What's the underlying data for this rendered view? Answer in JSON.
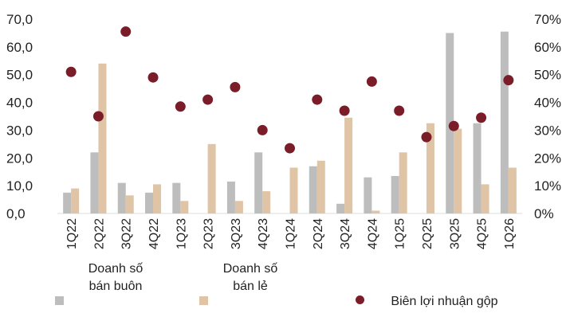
{
  "chart_data": {
    "type": "bar",
    "categories": [
      "1Q22",
      "2Q22",
      "3Q22",
      "4Q22",
      "1Q23",
      "2Q23",
      "3Q23",
      "4Q23",
      "1Q24",
      "2Q24",
      "3Q24",
      "4Q24",
      "1Q25",
      "2Q25",
      "3Q25",
      "4Q25",
      "1Q26"
    ],
    "series": [
      {
        "name": "Doanh số bán buôn",
        "kind": "bar",
        "axis": "left",
        "color": "#bdbdbd",
        "values": [
          7.5,
          22.0,
          11.0,
          7.5,
          11.0,
          0,
          11.5,
          22.0,
          0,
          17.0,
          3.5,
          13.0,
          13.5,
          0,
          65.0,
          32.5,
          65.5
        ]
      },
      {
        "name": "Doanh số bán lẻ",
        "kind": "bar",
        "axis": "left",
        "color": "#dfc4a6",
        "values": [
          9.0,
          54.0,
          6.5,
          10.5,
          4.5,
          25.0,
          4.5,
          8.0,
          16.5,
          19.0,
          34.5,
          1.0,
          22.0,
          32.5,
          30.5,
          10.5,
          16.5
        ]
      },
      {
        "name": "Biên lợi nhuận gộp",
        "kind": "scatter",
        "axis": "right",
        "color": "#7b1d28",
        "values": [
          51,
          35,
          65.5,
          49,
          38.5,
          41,
          45.5,
          30,
          23.5,
          41,
          37,
          47.5,
          37,
          27.5,
          31.5,
          34.5,
          48
        ]
      }
    ],
    "y_left": {
      "ylim": [
        0,
        70
      ],
      "ticks": [
        "0,0",
        "10,0",
        "20,0",
        "30,0",
        "40,0",
        "50,0",
        "60,0",
        "70,0"
      ]
    },
    "y_right": {
      "ylim": [
        0,
        70
      ],
      "ticks": [
        "0%",
        "10%",
        "20%",
        "30%",
        "40%",
        "50%",
        "60%",
        "70%"
      ]
    },
    "grid": false,
    "legend_position": "bottom"
  },
  "legend": {
    "wholesale_line1": "Doanh số",
    "wholesale_line2": "bán buôn",
    "retail_line1": "Doanh số",
    "retail_line2": "bán lẻ",
    "margin": "Biên lợi nhuận gộp"
  }
}
